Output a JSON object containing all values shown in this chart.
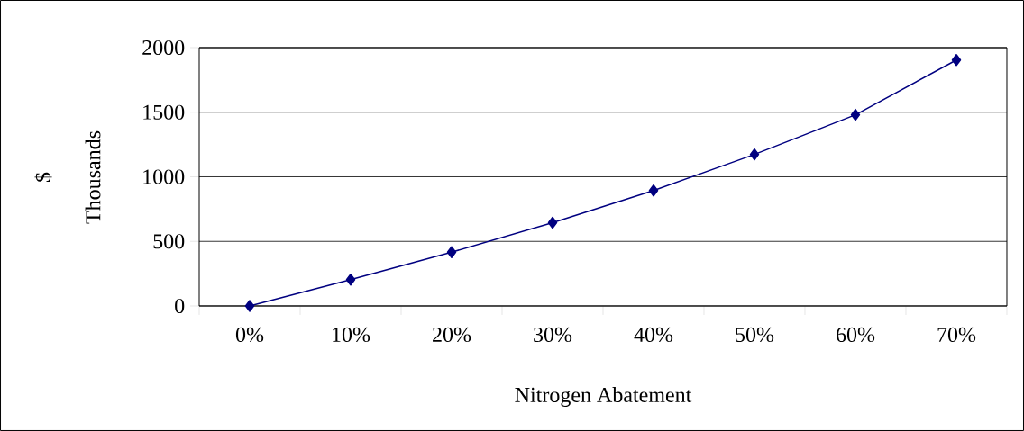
{
  "chart_data": {
    "type": "line",
    "xlabel": "Nitrogen Abatement",
    "ylabel": "$",
    "annotations": [
      "Thousands"
    ],
    "categories": [
      "0%",
      "10%",
      "20%",
      "30%",
      "40%",
      "50%",
      "60%",
      "70%"
    ],
    "values": [
      0,
      204,
      416,
      645,
      894,
      1173,
      1480,
      1904
    ],
    "color": "#000080",
    "marker": "diamond",
    "line_style": "solid",
    "ylim": [
      0,
      2000
    ],
    "yticks": [
      0,
      500,
      1000,
      1500,
      2000
    ],
    "grid": "y"
  }
}
